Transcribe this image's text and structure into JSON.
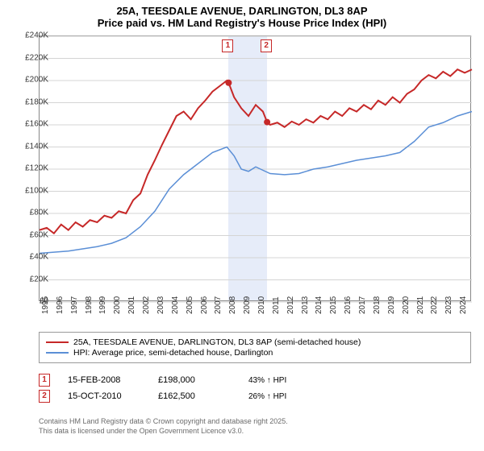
{
  "title": {
    "line1": "25A, TEESDALE AVENUE, DARLINGTON, DL3 8AP",
    "line2": "Price paid vs. HM Land Registry's House Price Index (HPI)"
  },
  "chart": {
    "type": "line",
    "background_color": "#ffffff",
    "grid_color": "#d4d4d4",
    "border_color": "#888888",
    "x_axis": {
      "min": 1995,
      "max": 2025,
      "ticks": [
        1995,
        1996,
        1997,
        1998,
        1999,
        2000,
        2001,
        2002,
        2003,
        2004,
        2005,
        2006,
        2007,
        2008,
        2009,
        2010,
        2011,
        2012,
        2013,
        2014,
        2015,
        2016,
        2017,
        2018,
        2019,
        2020,
        2021,
        2022,
        2023,
        2024
      ],
      "label_fontsize": 10,
      "label_color": "#333333",
      "rotation": -90
    },
    "y_axis": {
      "min": 0,
      "max": 240000,
      "ticks": [
        0,
        20000,
        40000,
        60000,
        80000,
        100000,
        120000,
        140000,
        160000,
        180000,
        200000,
        220000,
        240000
      ],
      "tick_labels": [
        "£0",
        "£20K",
        "£40K",
        "£60K",
        "£80K",
        "£100K",
        "£120K",
        "£140K",
        "£160K",
        "£180K",
        "£200K",
        "£220K",
        "£240K"
      ],
      "label_fontsize": 10,
      "label_color": "#333333"
    },
    "highlight_band": {
      "x_start": 2008.12,
      "x_end": 2010.79,
      "color": "#e6ecf9"
    },
    "series": [
      {
        "name": "property",
        "color": "#c62828",
        "line_width": 2,
        "legend_label": "25A, TEESDALE AVENUE, DARLINGTON, DL3 8AP (semi-detached house)",
        "data": [
          [
            1995,
            65000
          ],
          [
            1995.5,
            67000
          ],
          [
            1996,
            62000
          ],
          [
            1996.5,
            70000
          ],
          [
            1997,
            65000
          ],
          [
            1997.5,
            72000
          ],
          [
            1998,
            68000
          ],
          [
            1998.5,
            74000
          ],
          [
            1999,
            72000
          ],
          [
            1999.5,
            78000
          ],
          [
            2000,
            76000
          ],
          [
            2000.5,
            82000
          ],
          [
            2001,
            80000
          ],
          [
            2001.5,
            92000
          ],
          [
            2002,
            98000
          ],
          [
            2002.5,
            115000
          ],
          [
            2003,
            128000
          ],
          [
            2003.5,
            142000
          ],
          [
            2004,
            155000
          ],
          [
            2004.5,
            168000
          ],
          [
            2005,
            172000
          ],
          [
            2005.5,
            165000
          ],
          [
            2006,
            175000
          ],
          [
            2006.5,
            182000
          ],
          [
            2007,
            190000
          ],
          [
            2007.5,
            195000
          ],
          [
            2008,
            200000
          ],
          [
            2008.12,
            198000
          ],
          [
            2008.5,
            185000
          ],
          [
            2009,
            175000
          ],
          [
            2009.5,
            168000
          ],
          [
            2010,
            178000
          ],
          [
            2010.5,
            172000
          ],
          [
            2010.79,
            162500
          ],
          [
            2011,
            160000
          ],
          [
            2011.5,
            162000
          ],
          [
            2012,
            158000
          ],
          [
            2012.5,
            163000
          ],
          [
            2013,
            160000
          ],
          [
            2013.5,
            165000
          ],
          [
            2014,
            162000
          ],
          [
            2014.5,
            168000
          ],
          [
            2015,
            165000
          ],
          [
            2015.5,
            172000
          ],
          [
            2016,
            168000
          ],
          [
            2016.5,
            175000
          ],
          [
            2017,
            172000
          ],
          [
            2017.5,
            178000
          ],
          [
            2018,
            174000
          ],
          [
            2018.5,
            182000
          ],
          [
            2019,
            178000
          ],
          [
            2019.5,
            185000
          ],
          [
            2020,
            180000
          ],
          [
            2020.5,
            188000
          ],
          [
            2021,
            192000
          ],
          [
            2021.5,
            200000
          ],
          [
            2022,
            205000
          ],
          [
            2022.5,
            202000
          ],
          [
            2023,
            208000
          ],
          [
            2023.5,
            204000
          ],
          [
            2024,
            210000
          ],
          [
            2024.5,
            207000
          ],
          [
            2025,
            210000
          ]
        ]
      },
      {
        "name": "hpi",
        "color": "#5b8fd6",
        "line_width": 1.5,
        "legend_label": "HPI: Average price, semi-detached house, Darlington",
        "data": [
          [
            1995,
            44000
          ],
          [
            1996,
            45000
          ],
          [
            1997,
            46000
          ],
          [
            1998,
            48000
          ],
          [
            1999,
            50000
          ],
          [
            2000,
            53000
          ],
          [
            2001,
            58000
          ],
          [
            2002,
            68000
          ],
          [
            2003,
            82000
          ],
          [
            2004,
            102000
          ],
          [
            2005,
            115000
          ],
          [
            2006,
            125000
          ],
          [
            2007,
            135000
          ],
          [
            2008,
            140000
          ],
          [
            2008.5,
            132000
          ],
          [
            2009,
            120000
          ],
          [
            2009.5,
            118000
          ],
          [
            2010,
            122000
          ],
          [
            2010.5,
            119000
          ],
          [
            2011,
            116000
          ],
          [
            2012,
            115000
          ],
          [
            2013,
            116000
          ],
          [
            2014,
            120000
          ],
          [
            2015,
            122000
          ],
          [
            2016,
            125000
          ],
          [
            2017,
            128000
          ],
          [
            2018,
            130000
          ],
          [
            2019,
            132000
          ],
          [
            2020,
            135000
          ],
          [
            2021,
            145000
          ],
          [
            2022,
            158000
          ],
          [
            2023,
            162000
          ],
          [
            2024,
            168000
          ],
          [
            2025,
            172000
          ]
        ]
      }
    ],
    "markers": [
      {
        "id": "1",
        "x": 2008.12,
        "y": 198000,
        "label_y_offset": -38
      },
      {
        "id": "2",
        "x": 2010.79,
        "y": 162500,
        "label_y_offset": -38
      }
    ]
  },
  "legend": {
    "border_color": "#999999",
    "font_size": 10.5
  },
  "transactions": [
    {
      "marker": "1",
      "date": "15-FEB-2008",
      "price": "£198,000",
      "hpi_delta": "43% ↑ HPI"
    },
    {
      "marker": "2",
      "date": "15-OCT-2010",
      "price": "£162,500",
      "hpi_delta": "26% ↑ HPI"
    }
  ],
  "footer": {
    "line1": "Contains HM Land Registry data © Crown copyright and database right 2025.",
    "line2": "This data is licensed under the Open Government Licence v3.0.",
    "color": "#6b6b6b",
    "font_size": 9
  }
}
